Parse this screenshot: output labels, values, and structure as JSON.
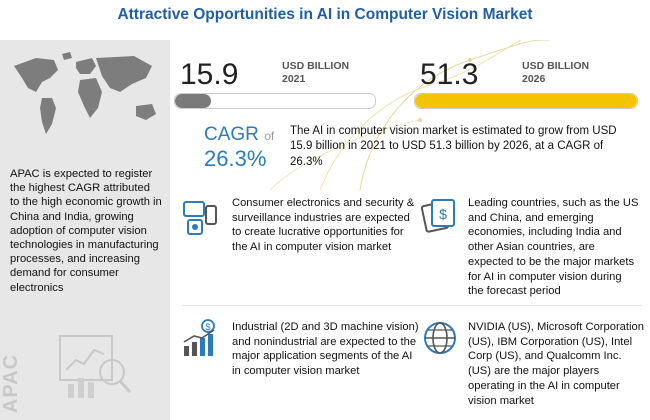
{
  "title": "Attractive Opportunities in AI in Computer Vision Market",
  "left_panel": {
    "description": "APAC is expected to register the highest CAGR attributed to the high economic growth in China and India, growing adoption of computer vision technologies in manufacturing processes, and increasing demand for consumer electronics",
    "watermark": "APAC"
  },
  "market_2021": {
    "value": "15.9",
    "unit": "USD BILLION",
    "year": "2021",
    "bar_fill_percent": 18
  },
  "market_2026": {
    "value": "51.3",
    "unit": "USD BILLION",
    "year": "2026",
    "bar_fill_percent": 100
  },
  "cagr": {
    "label": "CAGR",
    "of": "of",
    "value": "26.3%",
    "description": "The AI in computer vision market is estimated to grow from USD 15.9 billion in 2021 to USD 51.3 billion by 2026, at a CAGR of 26.3%"
  },
  "blurbs": [
    {
      "icon": "consumer-electronics-icon",
      "text": "Consumer electronics and security & surveillance industries are expected to create lucrative opportunities for the AI in computer vision market"
    },
    {
      "icon": "money-icon",
      "text": "Leading countries, such as the US and China, and emerging economies, including India and other Asian countries, are expected to be the major markets for AI in computer vision during the forecast period"
    },
    {
      "icon": "growth-chart-icon",
      "text": "Industrial (2D and 3D machine vision) and nonindustrial are expected to the major application segments of the AI in computer vision market"
    },
    {
      "icon": "globe-icon",
      "text": "NVIDIA (US), Microsoft Corporation (US), IBM Corporation (US), Intel Corp (US), and Qualcomm Inc. (US) are the major players operating in the AI in computer vision market"
    }
  ],
  "colors": {
    "title": "#1f5fa8",
    "accent_blue": "#2b7bbd",
    "yellow": "#f5c400",
    "gray_bar": "#7a7a7a",
    "left_bg": "#e7e7e7"
  }
}
